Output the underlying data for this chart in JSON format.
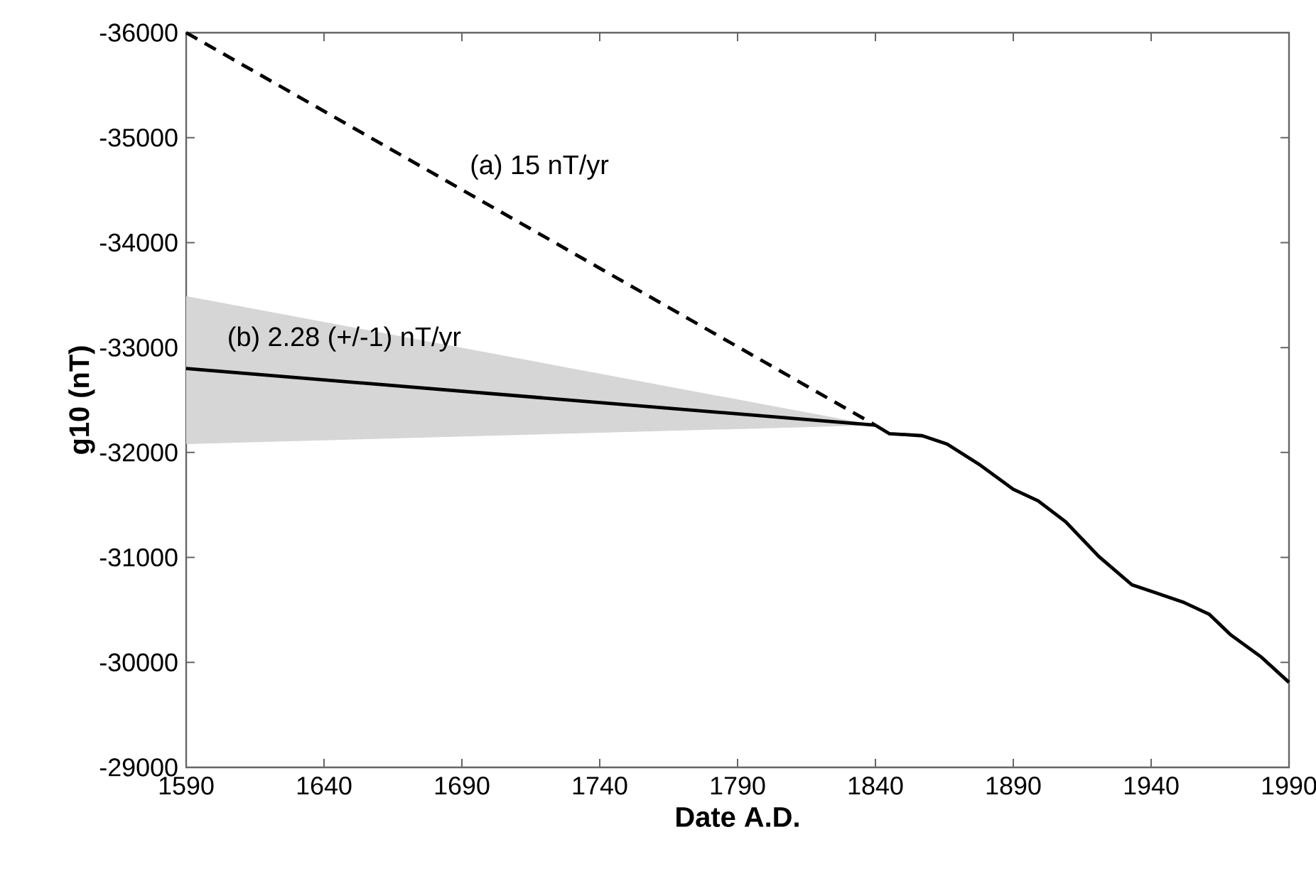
{
  "chart_data": {
    "type": "line",
    "xlabel": "Date A.D.",
    "ylabel": "g10 (nT)",
    "xlim": [
      1590,
      1990
    ],
    "xticks": [
      1590,
      1640,
      1690,
      1740,
      1790,
      1840,
      1890,
      1940,
      1990
    ],
    "ylim": [
      -29000,
      -36000
    ],
    "yticks": [
      -36000,
      -35000,
      -34000,
      -33000,
      -32000,
      -31000,
      -30000,
      -29000
    ],
    "grid": false,
    "series": [
      {
        "color": "#000000",
        "line_style": "solid",
        "x": [
          1590,
          1840
        ],
        "values": [
          -32800,
          -32260
        ],
        "lower": [
          -32080,
          -32260
        ],
        "upper": [
          -33490,
          -32260
        ]
      },
      {
        "color": "#000000",
        "line_style": "dashed",
        "x": [
          1590,
          1840
        ],
        "values": [
          -36000,
          -32260
        ]
      },
      {
        "color": "#000000",
        "line_style": "solid",
        "x": [
          1840,
          1845,
          1857,
          1866,
          1878,
          1890,
          1899,
          1909,
          1921,
          1933,
          1942,
          1952,
          1961,
          1969,
          1980,
          1990
        ],
        "values": [
          -32260,
          -32180,
          -32160,
          -32080,
          -31880,
          -31650,
          -31540,
          -31340,
          -31010,
          -30740,
          -30660,
          -30570,
          -30460,
          -30260,
          -30050,
          -29810
        ]
      }
    ],
    "annotations": [
      "(a) 15 nT/yr",
      "(b) 2.28 (+/-1) nT/yr"
    ]
  }
}
